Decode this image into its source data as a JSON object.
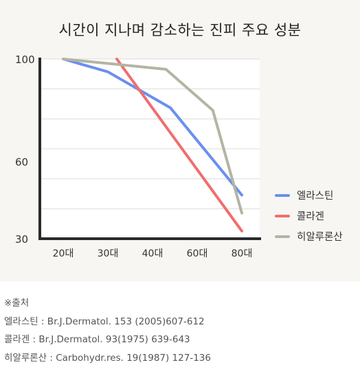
{
  "chart_data": {
    "type": "line",
    "title": "시간이 지나며 감소하는 진피 주요 성분",
    "categories": [
      "20대",
      "30대",
      "40대",
      "60대",
      "80대"
    ],
    "ylim": [
      30,
      100
    ],
    "yticks": [
      100,
      60,
      30
    ],
    "grid": true,
    "legend_position": "right",
    "series": [
      {
        "name": "엘라스틴",
        "color": "#6b8ef0",
        "points": [
          {
            "x": 0,
            "y": 100
          },
          {
            "x": 1,
            "y": 95
          },
          {
            "x": 2.4,
            "y": 81
          },
          {
            "x": 4,
            "y": 47
          }
        ]
      },
      {
        "name": "콜라겐",
        "color": "#f06e6e",
        "points": [
          {
            "x": 1.2,
            "y": 100
          },
          {
            "x": 4,
            "y": 33
          }
        ]
      },
      {
        "name": "히알루론산",
        "color": "#b3b5a3",
        "points": [
          {
            "x": 0,
            "y": 100
          },
          {
            "x": 2.3,
            "y": 96
          },
          {
            "x": 3.35,
            "y": 80
          },
          {
            "x": 4,
            "y": 40
          }
        ]
      }
    ]
  },
  "notes": {
    "heading": "※출처",
    "lines": [
      "엘라스틴 : Br.J.Dermatol. 153 (2005)607-612",
      "콜라겐 : Br.J.Dermatol. 93(1975) 639-643",
      "히알루론산 : Carbohydr.res. 19(1987) 127-136"
    ]
  }
}
